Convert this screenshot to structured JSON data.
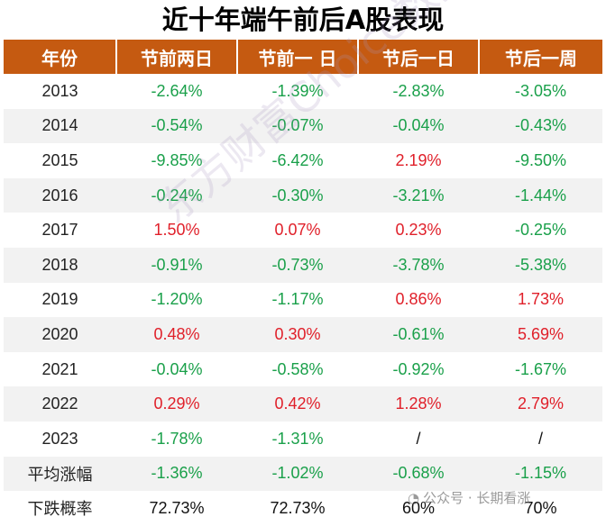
{
  "chart_data": {
    "type": "table",
    "title": "近十年端午前后A股表现",
    "columns": [
      "年份",
      "节前两日",
      "节前一 日",
      "节后一日",
      "节后一周"
    ],
    "rows": [
      {
        "label": "2013",
        "cells": [
          "-2.64%",
          "-1.39%",
          "-2.83%",
          "-3.05%"
        ]
      },
      {
        "label": "2014",
        "cells": [
          "-0.54%",
          "-0.07%",
          "-0.04%",
          "-0.43%"
        ]
      },
      {
        "label": "2015",
        "cells": [
          "-9.85%",
          "-6.42%",
          "2.19%",
          "-9.50%"
        ]
      },
      {
        "label": "2016",
        "cells": [
          "-0.24%",
          "-0.30%",
          "-3.21%",
          "-1.44%"
        ]
      },
      {
        "label": "2017",
        "cells": [
          "1.50%",
          "0.07%",
          "0.23%",
          "-0.25%"
        ]
      },
      {
        "label": "2018",
        "cells": [
          "-0.91%",
          "-0.73%",
          "-3.78%",
          "-5.38%"
        ]
      },
      {
        "label": "2019",
        "cells": [
          "-1.20%",
          "-1.17%",
          "0.86%",
          "1.73%"
        ]
      },
      {
        "label": "2020",
        "cells": [
          "0.48%",
          "0.30%",
          "-0.61%",
          "5.69%"
        ]
      },
      {
        "label": "2021",
        "cells": [
          "-0.04%",
          "-0.58%",
          "-0.92%",
          "-1.67%"
        ]
      },
      {
        "label": "2022",
        "cells": [
          "0.29%",
          "0.42%",
          "1.28%",
          "2.79%"
        ]
      },
      {
        "label": "2023",
        "cells": [
          "-1.78%",
          "-1.31%",
          "/",
          "/"
        ]
      },
      {
        "label": "平均涨幅",
        "cells": [
          "-1.36%",
          "-1.02%",
          "-0.68%",
          "-1.15%"
        ]
      },
      {
        "label": "下跌概率",
        "cells": [
          "72.73%",
          "72.73%",
          "60%",
          "70%"
        ]
      }
    ],
    "colors": {
      "header_bg": "#c55a11",
      "negative": "#1aa04a",
      "positive": "#e0202a"
    }
  },
  "watermark": {
    "text": "东方财富Choice数据"
  },
  "wechat_caption": {
    "icon": "wechat-icon",
    "text": "公众号 · 长期看涨"
  }
}
